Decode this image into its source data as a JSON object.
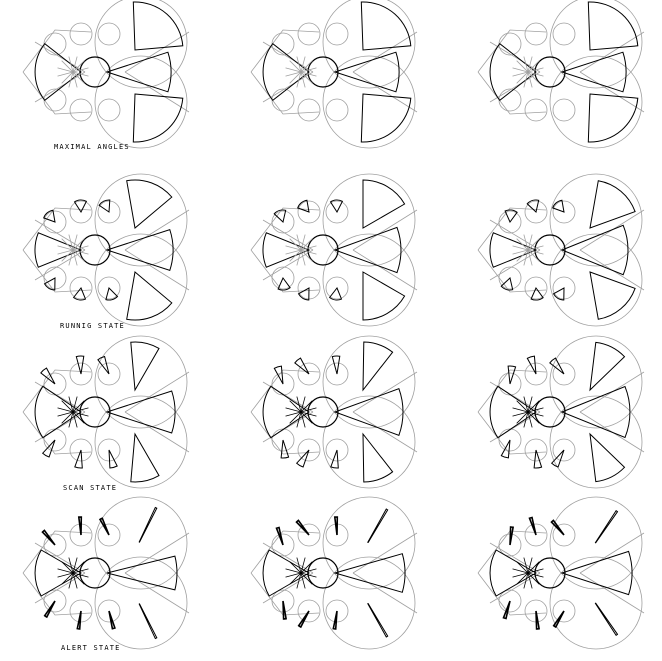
{
  "colors": {
    "background": "#ffffff",
    "outline": "#000000",
    "guide": "#a0a0a0"
  },
  "states": [
    {
      "label": "MAXIMAL ANGLES",
      "variants": 3
    },
    {
      "label": "RUNNIG STATE",
      "variants": 3
    },
    {
      "label": "SCAN STATE",
      "variants": 3
    },
    {
      "label": "ALERT STATE",
      "variants": 3
    }
  ]
}
